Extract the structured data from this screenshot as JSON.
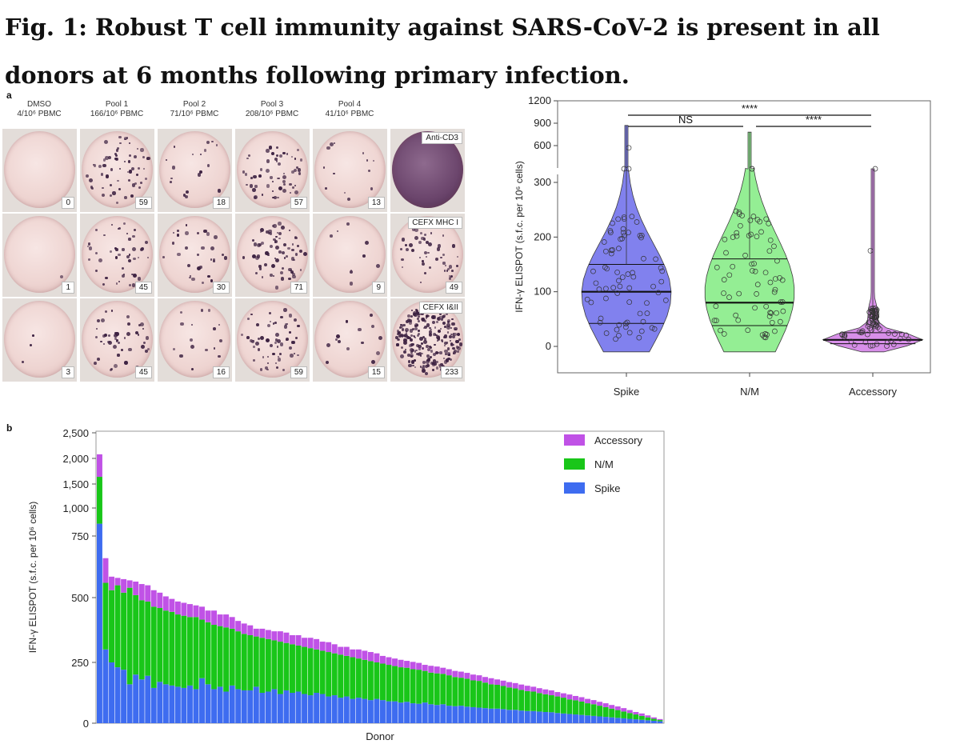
{
  "figure": {
    "title": "Fig. 1: Robust T cell immunity against SARS-CoV-2 is present in all donors at 6 months following primary infection.",
    "panel_a_label": "a",
    "panel_b_label": "b"
  },
  "elispot": {
    "columns": [
      {
        "name": "DMSO",
        "sub": "4/10⁶ PBMC"
      },
      {
        "name": "Pool 1",
        "sub": "166/10⁶ PBMC"
      },
      {
        "name": "Pool 2",
        "sub": "71/10⁶ PBMC"
      },
      {
        "name": "Pool 3",
        "sub": "208/10⁶ PBMC"
      },
      {
        "name": "Pool 4",
        "sub": "41/10⁶ PBMC"
      }
    ],
    "counts": [
      [
        "0",
        "59",
        "18",
        "57",
        "13"
      ],
      [
        "1",
        "45",
        "30",
        "71",
        "9"
      ],
      [
        "3",
        "45",
        "16",
        "59",
        "15"
      ]
    ],
    "spot_levels": [
      [
        0,
        59,
        18,
        57,
        13
      ],
      [
        1,
        45,
        30,
        71,
        9
      ],
      [
        3,
        45,
        16,
        59,
        15
      ]
    ],
    "controls": [
      {
        "label": "Anti-CD3",
        "count": ""
      },
      {
        "label": "CEFX MHC I",
        "count": "49"
      },
      {
        "label": "CEFX I&II",
        "count": "233"
      }
    ]
  },
  "chart_data": [
    {
      "type": "violin",
      "ylabel": "IFN-γ ELISPOT (s.f.c. per 10⁶ cells)",
      "categories": [
        "Spike",
        "N/M",
        "Accessory"
      ],
      "colors": [
        "#7b7bee",
        "#8fee8f",
        "#d68ae8"
      ],
      "yticks_lower": [
        0,
        100,
        200,
        300
      ],
      "yticks_upper": [
        600,
        900,
        1200
      ],
      "axis_break_between": [
        330,
        500
      ],
      "medians": [
        100,
        80,
        12
      ],
      "quartiles": [
        [
          42,
          150
        ],
        [
          38,
          160
        ],
        [
          5,
          25
        ]
      ],
      "max": [
        870,
        780,
        430
      ],
      "outliers": [
        [
          570,
          440,
          430
        ],
        [
          445,
          440
        ],
        [
          175,
          430
        ]
      ],
      "significance": [
        {
          "pair": [
            "Spike",
            "N/M"
          ],
          "label": "NS"
        },
        {
          "pair": [
            "N/M",
            "Accessory"
          ],
          "label": "****"
        },
        {
          "pair": [
            "Spike",
            "Accessory"
          ],
          "label": "****"
        }
      ]
    },
    {
      "type": "stacked_bar",
      "xlabel": "Donor",
      "ylabel": "IFN-γ ELISPOT (s.f.c. per 10⁶ cells)",
      "yticks": [
        "0",
        "250",
        "500",
        "750",
        "1,000",
        "1,500",
        "2,000",
        "2,500"
      ],
      "ytick_values": [
        0,
        250,
        500,
        750,
        1000,
        1500,
        2000,
        2500
      ],
      "legend": [
        {
          "name": "Accessory",
          "color": "#c052e6"
        },
        {
          "name": "N/M",
          "color": "#19c619"
        },
        {
          "name": "Spike",
          "color": "#3e6cf0"
        }
      ],
      "legend_position": "top-right",
      "series": [
        {
          "name": "Spike",
          "values": [
            860,
            300,
            250,
            230,
            220,
            160,
            200,
            180,
            195,
            145,
            170,
            160,
            155,
            150,
            145,
            155,
            140,
            185,
            160,
            140,
            150,
            130,
            155,
            140,
            135,
            135,
            150,
            125,
            130,
            140,
            120,
            135,
            125,
            130,
            120,
            115,
            125,
            120,
            110,
            115,
            105,
            110,
            100,
            105,
            100,
            95,
            100,
            95,
            90,
            90,
            85,
            88,
            82,
            80,
            85,
            78,
            75,
            78,
            72,
            70,
            72,
            68,
            66,
            64,
            62,
            60,
            60,
            58,
            55,
            55,
            52,
            50,
            50,
            48,
            46,
            45,
            42,
            40,
            38,
            36,
            34,
            32,
            30,
            28,
            26,
            24,
            22,
            20,
            18,
            16,
            14,
            12,
            10,
            8
          ]
        },
        {
          "name": "N/M",
          "values": [
            780,
            260,
            280,
            320,
            300,
            380,
            310,
            310,
            290,
            320,
            290,
            290,
            290,
            285,
            285,
            270,
            285,
            230,
            245,
            255,
            240,
            255,
            225,
            230,
            225,
            220,
            200,
            220,
            210,
            195,
            210,
            190,
            195,
            185,
            190,
            190,
            175,
            175,
            180,
            170,
            175,
            165,
            170,
            160,
            160,
            160,
            150,
            150,
            150,
            145,
            145,
            140,
            140,
            140,
            130,
            130,
            130,
            125,
            125,
            120,
            115,
            115,
            110,
            110,
            105,
            100,
            98,
            95,
            92,
            88,
            85,
            82,
            80,
            76,
            73,
            70,
            68,
            65,
            60,
            58,
            55,
            50,
            48,
            44,
            40,
            36,
            32,
            28,
            24,
            20,
            16,
            12,
            8,
            5
          ]
        },
        {
          "name": "Accessory",
          "values": [
            440,
            100,
            55,
            30,
            55,
            30,
            55,
            65,
            65,
            65,
            60,
            55,
            50,
            50,
            50,
            50,
            45,
            50,
            45,
            55,
            45,
            50,
            45,
            40,
            40,
            38,
            30,
            35,
            35,
            35,
            40,
            40,
            35,
            40,
            35,
            40,
            40,
            35,
            38,
            35,
            30,
            35,
            30,
            35,
            35,
            35,
            35,
            30,
            30,
            30,
            30,
            28,
            30,
            28,
            25,
            28,
            28,
            25,
            25,
            25,
            25,
            24,
            24,
            23,
            23,
            25,
            22,
            22,
            22,
            22,
            22,
            22,
            20,
            20,
            20,
            20,
            18,
            18,
            20,
            18,
            18,
            18,
            17,
            16,
            16,
            15,
            15,
            14,
            12,
            10,
            10,
            8,
            6,
            4
          ]
        }
      ]
    }
  ]
}
